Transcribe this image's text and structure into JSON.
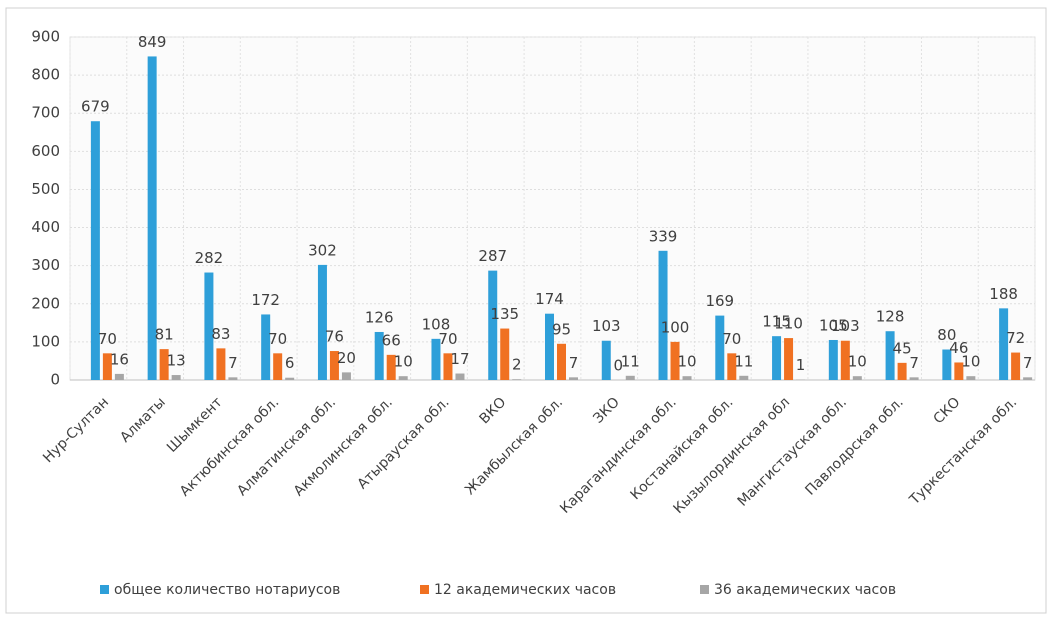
{
  "chart_data": {
    "type": "bar",
    "categories": [
      "Нур-Султан",
      "Алматы",
      "Шымкент",
      "Актюбинская обл.",
      "Алматинская обл.",
      "Акмолинская обл.",
      "Атырауская обл.",
      "ВКО",
      "Жамбылская обл.",
      "ЗКО",
      "Карагандинская обл.",
      "Костанайская обл.",
      "Кызылординская обл",
      "Мангистауская обл.",
      "Павлодрская обл.",
      "СКО",
      "Туркестанская обл."
    ],
    "series": [
      {
        "name": "общее количество нотариусов",
        "color": "#2e9fd9",
        "values": [
          679,
          849,
          282,
          172,
          302,
          126,
          108,
          287,
          174,
          103,
          339,
          169,
          115,
          105,
          128,
          80,
          188
        ]
      },
      {
        "name": "12 академических часов",
        "color": "#f07122",
        "values": [
          70,
          81,
          83,
          70,
          76,
          66,
          70,
          135,
          95,
          0,
          100,
          70,
          110,
          103,
          45,
          46,
          72
        ]
      },
      {
        "name": "36 академических часов",
        "color": "#a6a6a6",
        "values": [
          16,
          13,
          7,
          6,
          20,
          10,
          17,
          2,
          7,
          11,
          10,
          11,
          1,
          10,
          7,
          10,
          7
        ]
      }
    ],
    "ylim": [
      0,
      900
    ],
    "yticks": [
      0,
      100,
      200,
      300,
      400,
      500,
      600,
      700,
      800,
      900
    ],
    "grid": true,
    "legend": "bottom"
  }
}
